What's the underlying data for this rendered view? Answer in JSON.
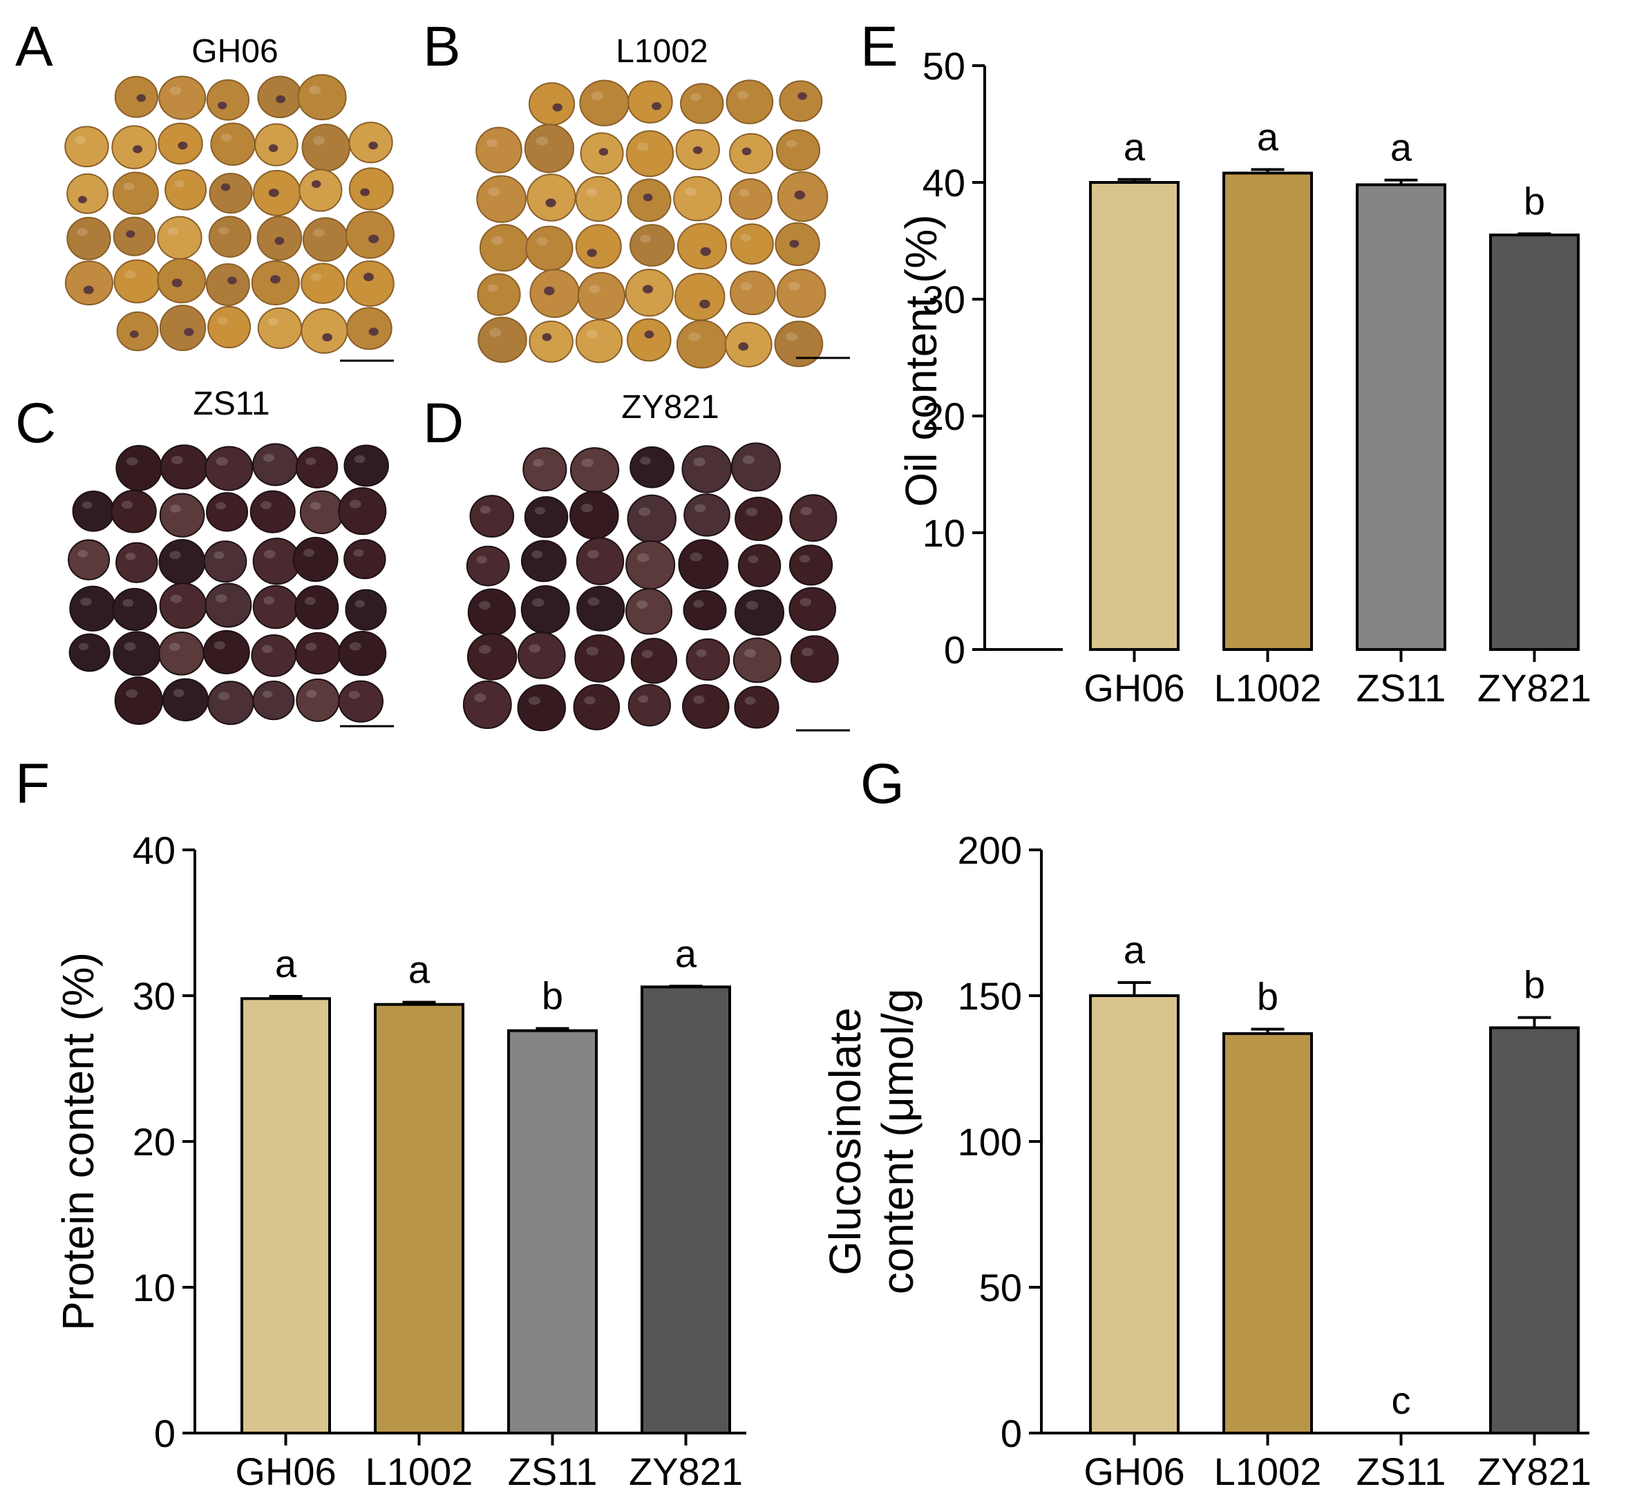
{
  "figure": {
    "panels": [
      {
        "letter": "A",
        "variety": "GH06",
        "seed_tone": "yellow"
      },
      {
        "letter": "B",
        "variety": "L1002",
        "seed_tone": "yellow"
      },
      {
        "letter": "C",
        "variety": "ZS11",
        "seed_tone": "dark"
      },
      {
        "letter": "D",
        "variety": "ZY821",
        "seed_tone": "dark"
      }
    ],
    "bar_colors": [
      "#d8c48d",
      "#b99549",
      "#858585",
      "#555757"
    ]
  },
  "chart_data": [
    {
      "panel": "E",
      "type": "bar",
      "categories": [
        "GH06",
        "L1002",
        "ZS11",
        "ZY821"
      ],
      "values": [
        40.0,
        40.8,
        39.8,
        35.5
      ],
      "errors": [
        0.25,
        0.3,
        0.4,
        0.1
      ],
      "letters": [
        "a",
        "a",
        "a",
        "b"
      ],
      "ylabel_lines": [
        "Oil content (%)"
      ],
      "ylim": [
        0,
        50
      ],
      "yticks": [
        "0",
        "10",
        "20",
        "30",
        "40",
        "50"
      ]
    },
    {
      "panel": "F",
      "type": "bar",
      "categories": [
        "GH06",
        "L1002",
        "ZS11",
        "ZY821"
      ],
      "values": [
        29.8,
        29.4,
        27.6,
        30.6
      ],
      "errors": [
        0.15,
        0.15,
        0.15,
        0.05
      ],
      "letters": [
        "a",
        "a",
        "b",
        "a"
      ],
      "ylabel_lines": [
        "Protein content (%)"
      ],
      "ylim": [
        0,
        40
      ],
      "yticks": [
        "0",
        "10",
        "20",
        "30",
        "40"
      ]
    },
    {
      "panel": "G",
      "type": "bar",
      "categories": [
        "GH06",
        "L1002",
        "ZS11",
        "ZY821"
      ],
      "values": [
        150,
        137,
        0,
        139
      ],
      "errors": [
        4.5,
        1.5,
        0,
        3.5
      ],
      "letters": [
        "a",
        "b",
        "c",
        "b"
      ],
      "ylabel_lines": [
        "Glucosinolate",
        "content (μmol/g"
      ],
      "ylim": [
        0,
        200
      ],
      "yticks": [
        "0",
        "50",
        "100",
        "150",
        "200"
      ]
    }
  ]
}
